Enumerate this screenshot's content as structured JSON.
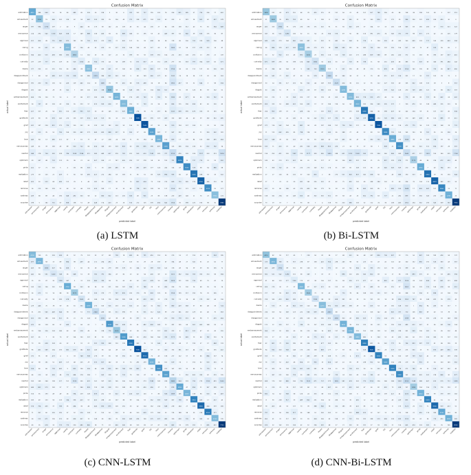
{
  "colors": {
    "low": "#f7fbff",
    "high": "#08306b",
    "text_dark": "#222222",
    "text_light": "#ffffff"
  },
  "chart_data": [
    {
      "type": "heatmap",
      "title": "Confusion Matrix",
      "caption": "(a)  LSTM",
      "xlabel": "predicted label",
      "ylabel": "actual label",
      "grid": false,
      "categories": [
        "admiration",
        "amusement",
        "anger",
        "annoyance",
        "approval",
        "caring",
        "confusion",
        "curiosity",
        "desire",
        "disappointment",
        "disapproval",
        "disgust",
        "embarrassment",
        "excitement",
        "fear",
        "gratitude",
        "grief",
        "joy",
        "love",
        "nervousness",
        "neutral",
        "optimism",
        "pride",
        "realization",
        "relief",
        "remorse",
        "sadness",
        "surprise"
      ],
      "diagonal": [
        4810,
        3760,
        1730,
        1130,
        980,
        4120,
        2860,
        1050,
        3850,
        2270,
        1480,
        3680,
        4420,
        4110,
        4640,
        7090,
        7040,
        5050,
        4380,
        5090,
        2110,
        5870,
        5630,
        6260,
        6700,
        5570,
        3960,
        7680
      ]
    },
    {
      "type": "heatmap",
      "title": "Confusion Matrix",
      "caption": "(b)  Bi-LSTM",
      "xlabel": "predicted label",
      "ylabel": "actual label",
      "grid": false,
      "categories": [
        "admiration",
        "amusement",
        "anger",
        "annoyance",
        "approval",
        "caring",
        "confusion",
        "curiosity",
        "desire",
        "disappointment",
        "disapproval",
        "disgust",
        "embarrassment",
        "excitement",
        "fear",
        "gratitude",
        "grief",
        "joy",
        "love",
        "nervousness",
        "neutral",
        "optimism",
        "pride",
        "realization",
        "relief",
        "remorse",
        "sadness",
        "surprise"
      ],
      "diagonal": [
        3690,
        3600,
        1960,
        1490,
        800,
        4050,
        3260,
        1800,
        3510,
        2400,
        2120,
        4280,
        4250,
        4590,
        6380,
        6950,
        7260,
        5880,
        4880,
        5700,
        2040,
        3170,
        4930,
        6550,
        6870,
        5960,
        4780,
        7950
      ]
    },
    {
      "type": "heatmap",
      "title": "Confusion Matrix",
      "caption": "(c)  CNN-LSTM",
      "xlabel": "predicted label",
      "ylabel": "actual label",
      "grid": false,
      "categories": [
        "admiration",
        "amusement",
        "anger",
        "annoyance",
        "approval",
        "caring",
        "confusion",
        "curiosity",
        "desire",
        "disappointment",
        "disapproval",
        "disgust",
        "embarrassment",
        "excitement",
        "fear",
        "gratitude",
        "grief",
        "joy",
        "love",
        "nervousness",
        "neutral",
        "optimism",
        "pride",
        "realization",
        "relief",
        "remorse",
        "sadness",
        "surprise"
      ],
      "diagonal": [
        4130,
        4350,
        1830,
        1420,
        1190,
        4760,
        3370,
        1600,
        4590,
        2240,
        1530,
        5320,
        3610,
        5260,
        6240,
        7180,
        6550,
        4530,
        5550,
        5090,
        2680,
        4850,
        4410,
        5910,
        6560,
        6150,
        4190,
        7730
      ]
    },
    {
      "type": "heatmap",
      "title": "Confusion Matrix",
      "caption": "(d)  CNN-Bi-LSTM",
      "xlabel": "predicted label",
      "ylabel": "actual label",
      "grid": false,
      "categories": [
        "admiration",
        "amusement",
        "anger",
        "annoyance",
        "approval",
        "caring",
        "confusion",
        "curiosity",
        "desire",
        "disappointment",
        "disapproval",
        "disgust",
        "embarrassment",
        "excitement",
        "fear",
        "gratitude",
        "grief",
        "joy",
        "love",
        "nervousness",
        "neutral",
        "optimism",
        "pride",
        "realization",
        "relief",
        "remorse",
        "sadness",
        "surprise"
      ],
      "diagonal": [
        4010,
        4630,
        1950,
        1280,
        1160,
        4540,
        3560,
        1930,
        4270,
        2410,
        2060,
        4820,
        4720,
        4440,
        6360,
        7400,
        6300,
        5450,
        6300,
        6040,
        2510,
        3490,
        4820,
        6230,
        6940,
        5180,
        4890,
        8200
      ]
    }
  ]
}
